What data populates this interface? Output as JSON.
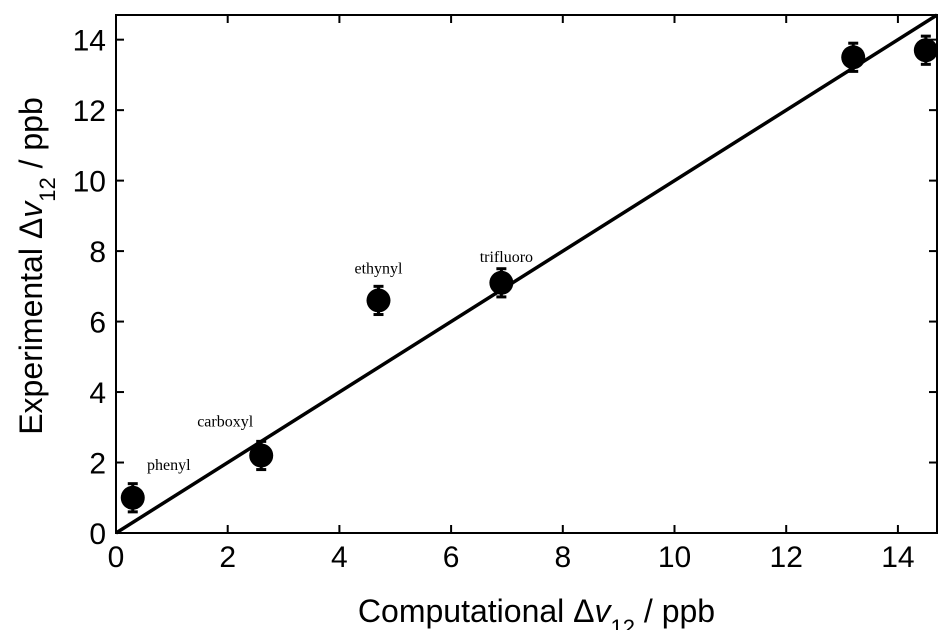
{
  "chart_data": {
    "type": "scatter",
    "xlabel": {
      "pre": "Computational Δ",
      "var": "v",
      "sub": "12",
      "post": " / ppb"
    },
    "ylabel": {
      "pre": "Experimental Δ",
      "var": "v",
      "sub": "12",
      "post": " / ppb"
    },
    "xlim": [
      0,
      14.7
    ],
    "ylim": [
      0,
      14.7
    ],
    "xticks": [
      0,
      2,
      4,
      6,
      8,
      10,
      12,
      14
    ],
    "yticks": [
      0,
      2,
      4,
      6,
      8,
      10,
      12,
      14
    ],
    "xtick_labels": [
      "0",
      "2",
      "4",
      "6",
      "8",
      "10",
      "12",
      "14"
    ],
    "ytick_labels": [
      "0",
      "2",
      "4",
      "6",
      "8",
      "10",
      "12",
      "14"
    ],
    "grid": false,
    "points": [
      {
        "x": 0.3,
        "y": 1.0,
        "err": 0.4,
        "label": "phenyl"
      },
      {
        "x": 2.6,
        "y": 2.2,
        "err": 0.4,
        "label": "carboxyl"
      },
      {
        "x": 4.7,
        "y": 6.6,
        "err": 0.4,
        "label": "ethynyl"
      },
      {
        "x": 6.9,
        "y": 7.1,
        "err": 0.4,
        "label": "trifluoro"
      },
      {
        "x": 13.2,
        "y": 13.5,
        "err": 0.4,
        "label": ""
      },
      {
        "x": 14.5,
        "y": 13.7,
        "err": 0.4,
        "label": ""
      }
    ],
    "fit_line": {
      "x": [
        0,
        14.7
      ],
      "y": [
        0,
        14.7
      ]
    },
    "colors": {
      "marker": "#000000",
      "line": "#000000"
    }
  }
}
